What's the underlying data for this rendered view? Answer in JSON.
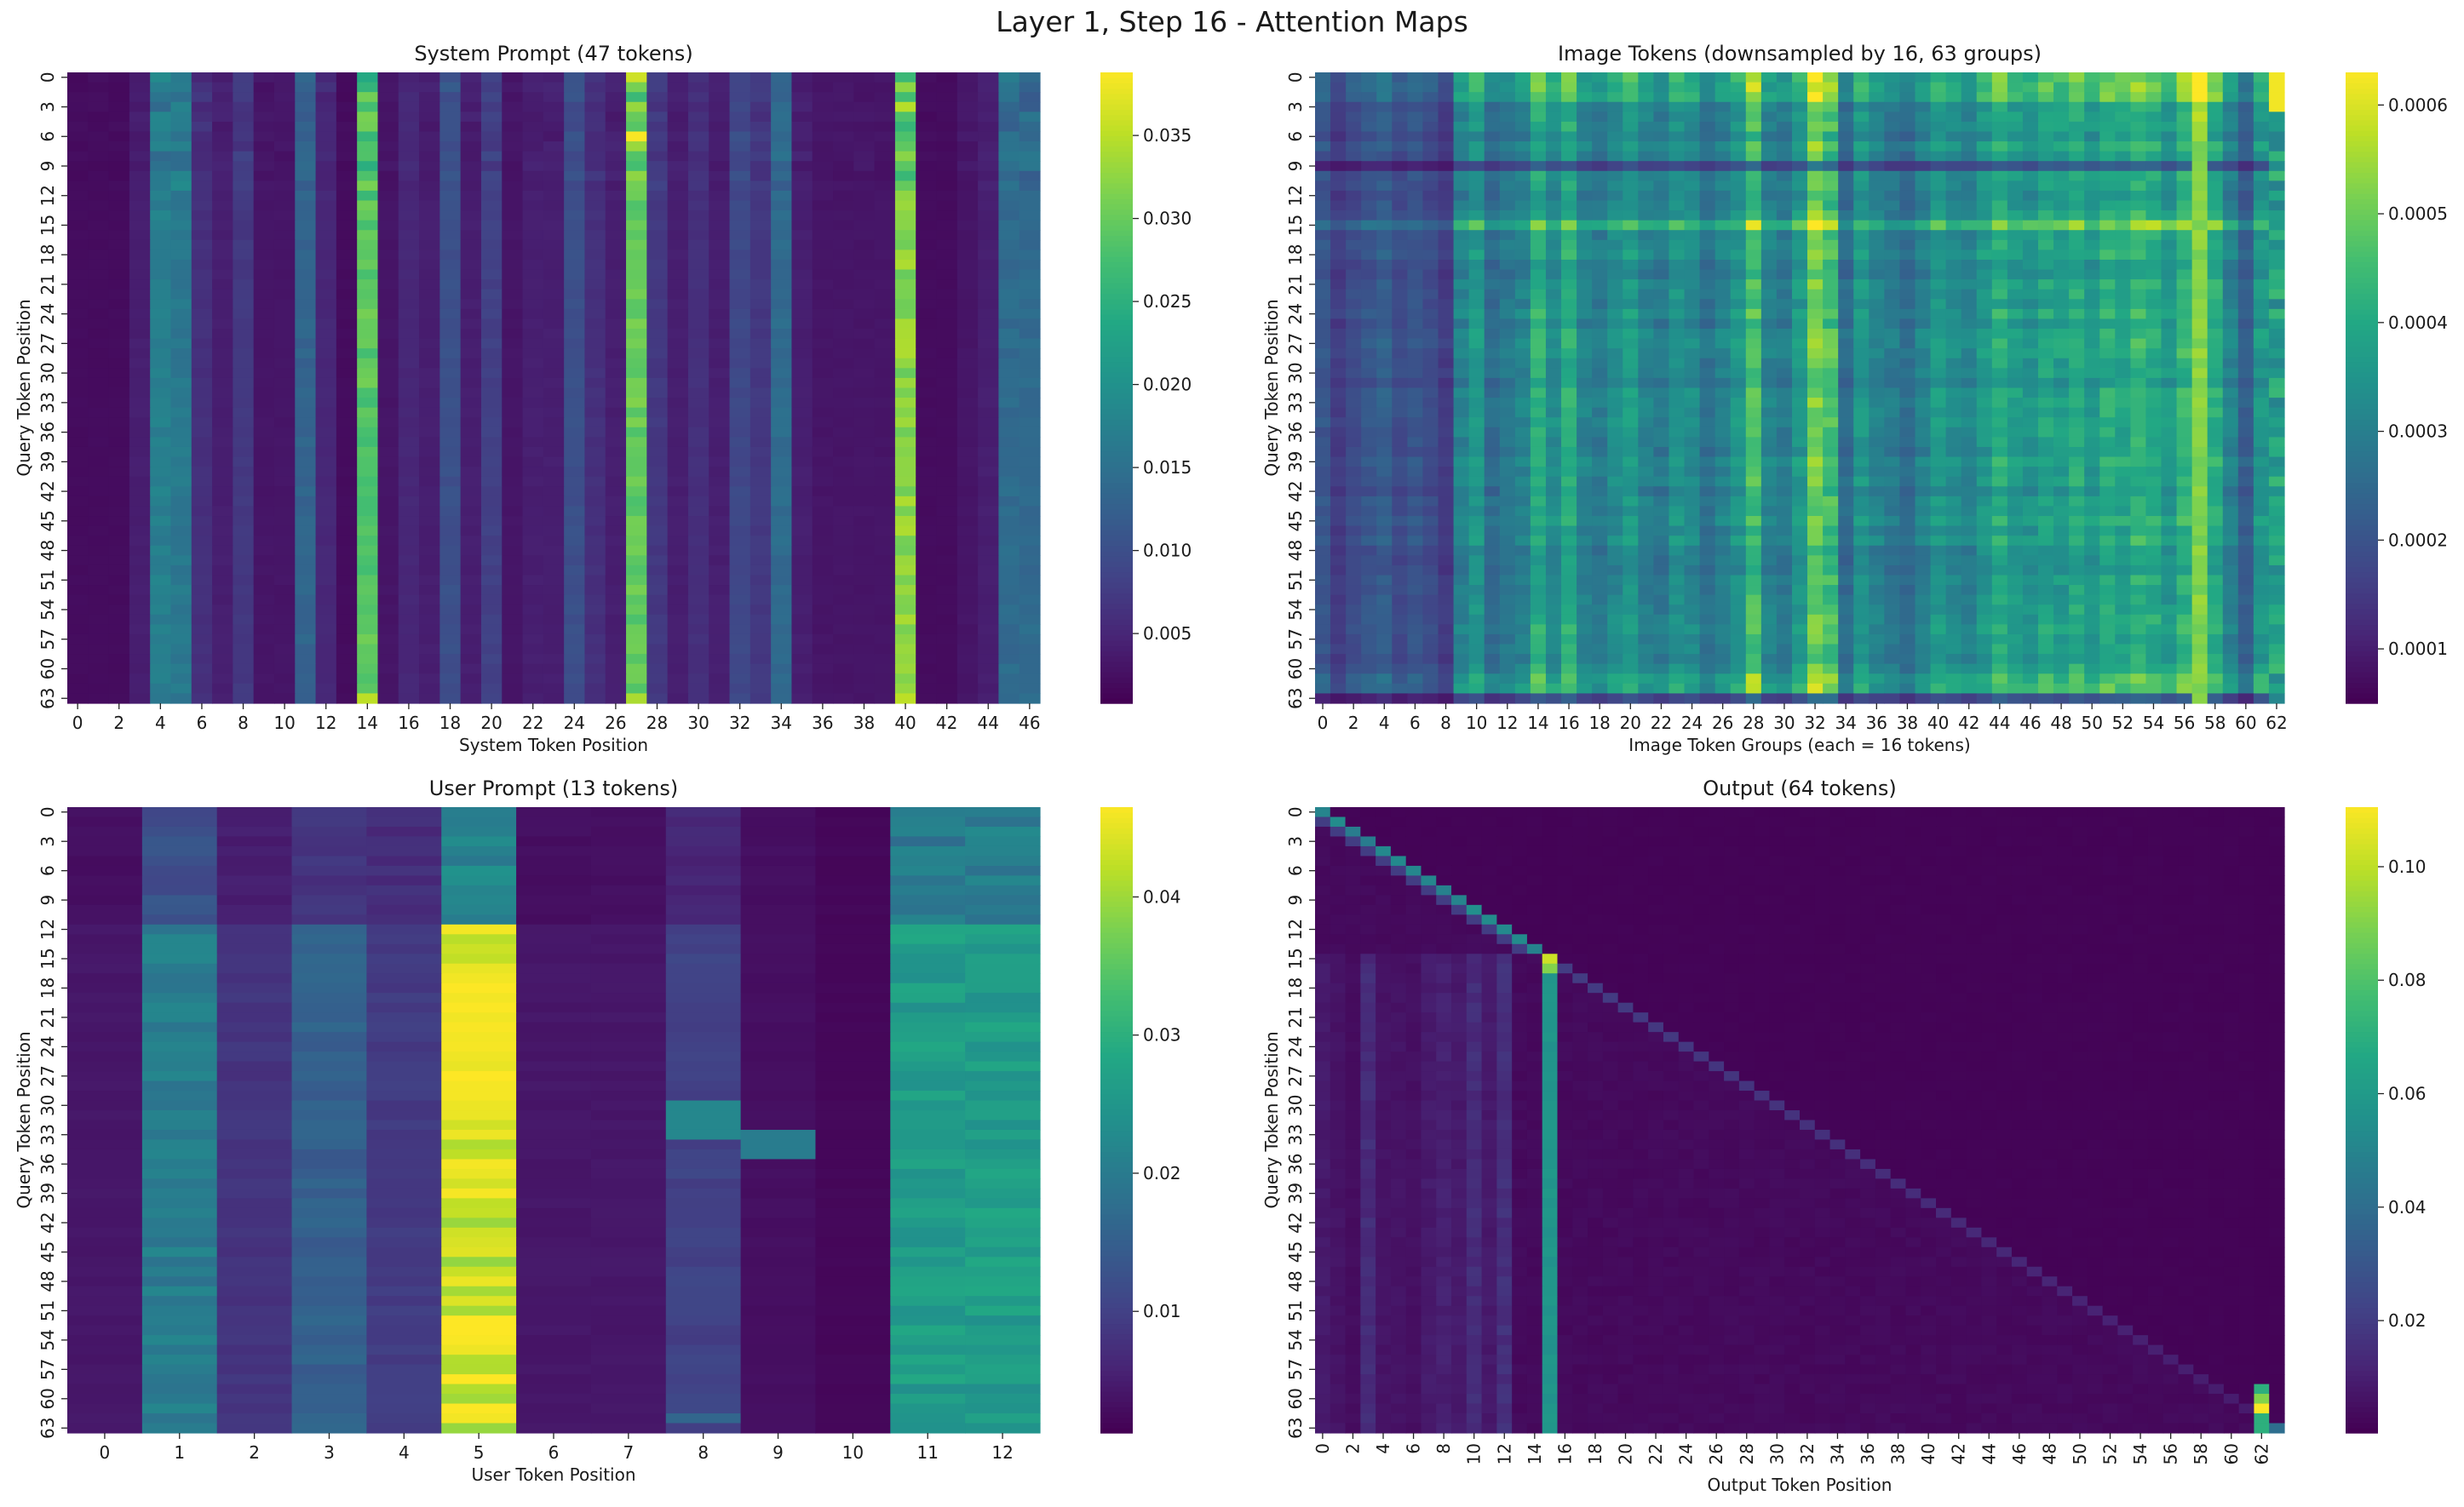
{
  "figure": {
    "suptitle": "Layer 1, Step 16 - Attention Maps",
    "colormap": "viridis"
  },
  "chart_data": [
    {
      "id": "system",
      "type": "heatmap",
      "title": "System Prompt (47 tokens)",
      "xlabel": "System Token Position",
      "ylabel": "Query Token Position",
      "n_cols": 47,
      "n_rows": 64,
      "x_ticks": [
        0,
        2,
        4,
        6,
        8,
        10,
        12,
        14,
        16,
        18,
        20,
        22,
        24,
        26,
        28,
        30,
        32,
        34,
        36,
        38,
        40,
        42,
        44,
        46
      ],
      "x_tick_rotation": 0,
      "y_ticks": [
        0,
        3,
        6,
        9,
        12,
        15,
        18,
        21,
        24,
        27,
        30,
        33,
        36,
        39,
        42,
        45,
        48,
        51,
        54,
        57,
        60,
        63
      ],
      "vmin": 0.0008,
      "vmax": 0.0388,
      "colorbar_ticks": [
        0.005,
        0.01,
        0.015,
        0.02,
        0.025,
        0.03,
        0.035
      ],
      "colorbar_labels": [
        "0.005",
        "0.010",
        "0.015",
        "0.020",
        "0.025",
        "0.030",
        "0.035"
      ],
      "column_profile": [
        0.002,
        0.002,
        0.002,
        0.004,
        0.017,
        0.016,
        0.006,
        0.004,
        0.007,
        0.003,
        0.003,
        0.013,
        0.005,
        0.002,
        0.028,
        0.003,
        0.005,
        0.004,
        0.01,
        0.004,
        0.008,
        0.003,
        0.004,
        0.004,
        0.01,
        0.006,
        0.004,
        0.03,
        0.007,
        0.004,
        0.006,
        0.004,
        0.009,
        0.007,
        0.014,
        0.004,
        0.003,
        0.003,
        0.003,
        0.003,
        0.031,
        0.002,
        0.002,
        0.003,
        0.004,
        0.014,
        0.014
      ],
      "notes": "Strong vertical bands at columns 14, 27, 40; hot spot near row 6, column 27; bright bottom row at columns 14, 27, 40."
    },
    {
      "id": "image",
      "type": "heatmap",
      "title": "Image Tokens (downsampled by 16, 63 groups)",
      "xlabel": "Image Token Groups (each = 16 tokens)",
      "ylabel": "Query Token Position",
      "n_cols": 63,
      "n_rows": 64,
      "x_ticks": [
        0,
        2,
        4,
        6,
        8,
        10,
        12,
        14,
        16,
        18,
        20,
        22,
        24,
        26,
        28,
        30,
        32,
        34,
        36,
        38,
        40,
        42,
        44,
        46,
        48,
        50,
        52,
        54,
        56,
        58,
        60,
        62
      ],
      "x_tick_rotation": 0,
      "y_ticks": [
        0,
        3,
        6,
        9,
        12,
        15,
        18,
        21,
        24,
        27,
        30,
        33,
        36,
        39,
        42,
        45,
        48,
        51,
        54,
        57,
        60,
        63
      ],
      "vmin": 5e-05,
      "vmax": 0.00063,
      "colorbar_ticks": [
        0.0001,
        0.0002,
        0.0003,
        0.0004,
        0.0005,
        0.0006
      ],
      "colorbar_labels": [
        "0.0001",
        "0.0002",
        "0.0003",
        "0.0004",
        "0.0005",
        "0.0006"
      ],
      "column_profile": [
        0.0002,
        0.00015,
        0.00018,
        0.0002,
        0.00022,
        0.00018,
        0.0002,
        0.00018,
        0.00015,
        0.0003,
        0.00035,
        0.00025,
        0.00028,
        0.0003,
        0.0004,
        0.00032,
        0.0004,
        0.0003,
        0.00028,
        0.00032,
        0.00036,
        0.0003,
        0.00028,
        0.00034,
        0.00032,
        0.00026,
        0.0003,
        0.00034,
        0.00045,
        0.0003,
        0.00028,
        0.00035,
        0.0005,
        0.00045,
        0.00025,
        0.00035,
        0.0003,
        0.00028,
        0.00025,
        0.0003,
        0.00035,
        0.00032,
        0.0003,
        0.00035,
        0.0004,
        0.00036,
        0.00034,
        0.00038,
        0.00036,
        0.0004,
        0.00035,
        0.0004,
        0.00038,
        0.00042,
        0.0004,
        0.00035,
        0.00042,
        0.00055,
        0.0004,
        0.0003,
        0.00022,
        0.00035,
        0.0005
      ],
      "notes": "Brighter rows at 0-3 and 15; darker rows around 9; bright stripe at column 57; top-right corner yellow."
    },
    {
      "id": "user",
      "type": "heatmap",
      "title": "User Prompt (13 tokens)",
      "xlabel": "User Token Position",
      "ylabel": "Query Token Position",
      "n_cols": 13,
      "n_rows": 64,
      "x_ticks": [
        0,
        1,
        2,
        3,
        4,
        5,
        6,
        7,
        8,
        9,
        10,
        11,
        12
      ],
      "x_tick_rotation": 0,
      "y_ticks": [
        0,
        3,
        6,
        9,
        12,
        15,
        18,
        21,
        24,
        27,
        30,
        33,
        36,
        39,
        42,
        45,
        48,
        51,
        54,
        57,
        60,
        63
      ],
      "vmin": 0.0012,
      "vmax": 0.0465,
      "colorbar_ticks": [
        0.01,
        0.02,
        0.03,
        0.04
      ],
      "colorbar_labels": [
        "0.01",
        "0.02",
        "0.03",
        "0.04"
      ],
      "column_profile": [
        0.004,
        0.02,
        0.008,
        0.015,
        0.009,
        0.043,
        0.004,
        0.004,
        0.01,
        0.003,
        0.002,
        0.026,
        0.026
      ],
      "notes": "Column 5 dominant (yellow), columns 11-12 teal, column 1 and 3 mid blue; rows 0-11 weaker."
    },
    {
      "id": "output",
      "type": "heatmap",
      "title": "Output (64 tokens)",
      "xlabel": "Output Token Position",
      "ylabel": "Query Token Position",
      "n_cols": 64,
      "n_rows": 64,
      "x_ticks": [
        0,
        2,
        4,
        6,
        8,
        10,
        12,
        14,
        16,
        18,
        20,
        22,
        24,
        26,
        28,
        30,
        32,
        34,
        36,
        38,
        40,
        42,
        44,
        46,
        48,
        50,
        52,
        54,
        56,
        58,
        60,
        62
      ],
      "x_tick_rotation": 90,
      "y_ticks": [
        0,
        3,
        6,
        9,
        12,
        15,
        18,
        21,
        24,
        27,
        30,
        33,
        36,
        39,
        42,
        45,
        48,
        51,
        54,
        57,
        60,
        63
      ],
      "vmin": 0.0002,
      "vmax": 0.1105,
      "colorbar_ticks": [
        0.02,
        0.04,
        0.06,
        0.08,
        0.1
      ],
      "colorbar_labels": [
        "0.02",
        "0.04",
        "0.06",
        "0.08",
        "0.10"
      ],
      "notes": "Causal attention: diagonal, strong column 15 (peak ~0.10 at rows 15-16), column 62 at bottom (~0.11 near row 61), early-token columns 0-12 light."
    }
  ]
}
